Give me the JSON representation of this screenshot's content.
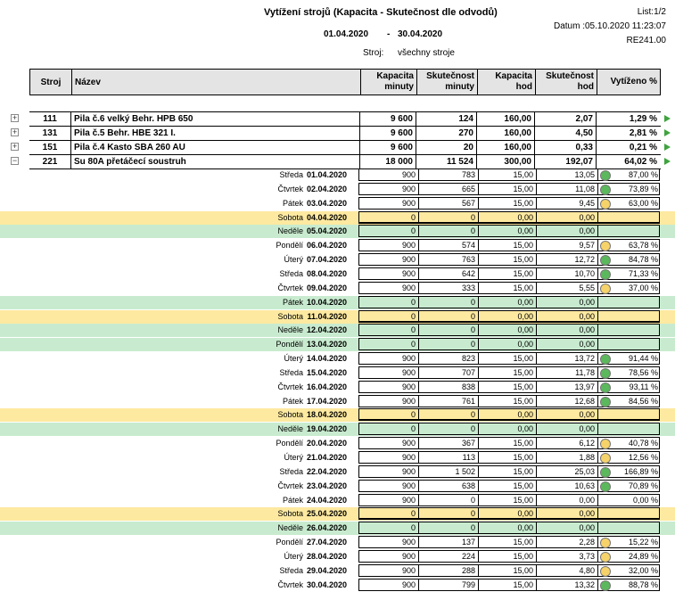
{
  "header": {
    "title": "Vytížení strojů (Kapacita -  Skutečnost dle odvodů)",
    "page": "List:1/2",
    "datum": "Datum :05.10.2020 11:23:07",
    "report_code": "RE241.00",
    "date_from": "01.04.2020",
    "dash": "-",
    "date_to": "30.04.2020",
    "stroj_label": "Stroj:",
    "stroj_value": "všechny stroje"
  },
  "columns": {
    "stroj": "Stroj",
    "nazev": "Název",
    "kap_min_1": "Kapacita",
    "kap_min_2": "minuty",
    "sku_min_1": "Skutečnost",
    "sku_min_2": "minuty",
    "kap_hod_1": "Kapacita",
    "kap_hod_2": "hod",
    "sku_hod_1": "Skutečnost",
    "sku_hod_2": "hod",
    "vyt": "Vytíženo %"
  },
  "machines": [
    {
      "expander": "+",
      "id": "111",
      "name": "Pila č.6 velký Behr. HPB 650",
      "kap_min": "9 600",
      "sku_min": "124",
      "kap_hod": "160,00",
      "sku_hod": "2,07",
      "pct": "1,29 %"
    },
    {
      "expander": "+",
      "id": "131",
      "name": "Pila č.5 Behr. HBE 321 I.",
      "kap_min": "9 600",
      "sku_min": "270",
      "kap_hod": "160,00",
      "sku_hod": "4,50",
      "pct": "2,81 %"
    },
    {
      "expander": "+",
      "id": "151",
      "name": "Pila č.4 Kasto SBA 260 AU",
      "kap_min": "9 600",
      "sku_min": "20",
      "kap_hod": "160,00",
      "sku_hod": "0,33",
      "pct": "0,21 %"
    },
    {
      "expander": "−",
      "id": "221",
      "name": "Su 80A přetáčecí soustruh",
      "kap_min": "18 000",
      "sku_min": "11 524",
      "kap_hod": "300,00",
      "sku_hod": "192,07",
      "pct": "64,02 %"
    }
  ],
  "indicator_colors": {
    "green": "#5cb85c",
    "yellow": "#f6d36a"
  },
  "days": [
    {
      "day": "Středa",
      "date": "01.04.2020",
      "kap_min": "900",
      "sku_min": "783",
      "kap_hod": "15,00",
      "sku_hod": "13,05",
      "indicator": "green",
      "pct": "87,00 %",
      "type": "work"
    },
    {
      "day": "Čtvrtek",
      "date": "02.04.2020",
      "kap_min": "900",
      "sku_min": "665",
      "kap_hod": "15,00",
      "sku_hod": "11,08",
      "indicator": "green",
      "pct": "73,89 %",
      "type": "work"
    },
    {
      "day": "Pátek",
      "date": "03.04.2020",
      "kap_min": "900",
      "sku_min": "567",
      "kap_hod": "15,00",
      "sku_hod": "9,45",
      "indicator": "yellow",
      "pct": "63,00 %",
      "type": "work"
    },
    {
      "day": "Sobota",
      "date": "04.04.2020",
      "kap_min": "0",
      "sku_min": "0",
      "kap_hod": "0,00",
      "sku_hod": "0,00",
      "indicator": "",
      "pct": "",
      "type": "sat"
    },
    {
      "day": "Neděle",
      "date": "05.04.2020",
      "kap_min": "0",
      "sku_min": "0",
      "kap_hod": "0,00",
      "sku_hod": "0,00",
      "indicator": "",
      "pct": "",
      "type": "sun"
    },
    {
      "day": "Pondělí",
      "date": "06.04.2020",
      "kap_min": "900",
      "sku_min": "574",
      "kap_hod": "15,00",
      "sku_hod": "9,57",
      "indicator": "yellow",
      "pct": "63,78 %",
      "type": "work"
    },
    {
      "day": "Úterý",
      "date": "07.04.2020",
      "kap_min": "900",
      "sku_min": "763",
      "kap_hod": "15,00",
      "sku_hod": "12,72",
      "indicator": "green",
      "pct": "84,78 %",
      "type": "work"
    },
    {
      "day": "Středa",
      "date": "08.04.2020",
      "kap_min": "900",
      "sku_min": "642",
      "kap_hod": "15,00",
      "sku_hod": "10,70",
      "indicator": "green",
      "pct": "71,33 %",
      "type": "work"
    },
    {
      "day": "Čtvrtek",
      "date": "09.04.2020",
      "kap_min": "900",
      "sku_min": "333",
      "kap_hod": "15,00",
      "sku_hod": "5,55",
      "indicator": "yellow",
      "pct": "37,00 %",
      "type": "work"
    },
    {
      "day": "Pátek",
      "date": "10.04.2020",
      "kap_min": "0",
      "sku_min": "0",
      "kap_hod": "0,00",
      "sku_hod": "0,00",
      "indicator": "",
      "pct": "",
      "type": "sun"
    },
    {
      "day": "Sobota",
      "date": "11.04.2020",
      "kap_min": "0",
      "sku_min": "0",
      "kap_hod": "0,00",
      "sku_hod": "0,00",
      "indicator": "",
      "pct": "",
      "type": "sat"
    },
    {
      "day": "Neděle",
      "date": "12.04.2020",
      "kap_min": "0",
      "sku_min": "0",
      "kap_hod": "0,00",
      "sku_hod": "0,00",
      "indicator": "",
      "pct": "",
      "type": "sun"
    },
    {
      "day": "Pondělí",
      "date": "13.04.2020",
      "kap_min": "0",
      "sku_min": "0",
      "kap_hod": "0,00",
      "sku_hod": "0,00",
      "indicator": "",
      "pct": "",
      "type": "sun"
    },
    {
      "day": "Úterý",
      "date": "14.04.2020",
      "kap_min": "900",
      "sku_min": "823",
      "kap_hod": "15,00",
      "sku_hod": "13,72",
      "indicator": "green",
      "pct": "91,44 %",
      "type": "work"
    },
    {
      "day": "Středa",
      "date": "15.04.2020",
      "kap_min": "900",
      "sku_min": "707",
      "kap_hod": "15,00",
      "sku_hod": "11,78",
      "indicator": "green",
      "pct": "78,56 %",
      "type": "work"
    },
    {
      "day": "Čtvrtek",
      "date": "16.04.2020",
      "kap_min": "900",
      "sku_min": "838",
      "kap_hod": "15,00",
      "sku_hod": "13,97",
      "indicator": "green",
      "pct": "93,11 %",
      "type": "work"
    },
    {
      "day": "Pátek",
      "date": "17.04.2020",
      "kap_min": "900",
      "sku_min": "761",
      "kap_hod": "15,00",
      "sku_hod": "12,68",
      "indicator": "green",
      "pct": "84,56 %",
      "type": "work"
    },
    {
      "day": "Sobota",
      "date": "18.04.2020",
      "kap_min": "0",
      "sku_min": "0",
      "kap_hod": "0,00",
      "sku_hod": "0,00",
      "indicator": "",
      "pct": "",
      "type": "sat"
    },
    {
      "day": "Neděle",
      "date": "19.04.2020",
      "kap_min": "0",
      "sku_min": "0",
      "kap_hod": "0,00",
      "sku_hod": "0,00",
      "indicator": "",
      "pct": "",
      "type": "sun"
    },
    {
      "day": "Pondělí",
      "date": "20.04.2020",
      "kap_min": "900",
      "sku_min": "367",
      "kap_hod": "15,00",
      "sku_hod": "6,12",
      "indicator": "yellow",
      "pct": "40,78 %",
      "type": "work"
    },
    {
      "day": "Úterý",
      "date": "21.04.2020",
      "kap_min": "900",
      "sku_min": "113",
      "kap_hod": "15,00",
      "sku_hod": "1,88",
      "indicator": "yellow",
      "pct": "12,56 %",
      "type": "work"
    },
    {
      "day": "Středa",
      "date": "22.04.2020",
      "kap_min": "900",
      "sku_min": "1 502",
      "kap_hod": "15,00",
      "sku_hod": "25,03",
      "indicator": "green",
      "pct": "166,89 %",
      "type": "work"
    },
    {
      "day": "Čtvrtek",
      "date": "23.04.2020",
      "kap_min": "900",
      "sku_min": "638",
      "kap_hod": "15,00",
      "sku_hod": "10,63",
      "indicator": "green",
      "pct": "70,89 %",
      "type": "work"
    },
    {
      "day": "Pátek",
      "date": "24.04.2020",
      "kap_min": "900",
      "sku_min": "0",
      "kap_hod": "15,00",
      "sku_hod": "0,00",
      "indicator": "",
      "pct": "0,00 %",
      "type": "work"
    },
    {
      "day": "Sobota",
      "date": "25.04.2020",
      "kap_min": "0",
      "sku_min": "0",
      "kap_hod": "0,00",
      "sku_hod": "0,00",
      "indicator": "",
      "pct": "",
      "type": "sat"
    },
    {
      "day": "Neděle",
      "date": "26.04.2020",
      "kap_min": "0",
      "sku_min": "0",
      "kap_hod": "0,00",
      "sku_hod": "0,00",
      "indicator": "",
      "pct": "",
      "type": "sun"
    },
    {
      "day": "Pondělí",
      "date": "27.04.2020",
      "kap_min": "900",
      "sku_min": "137",
      "kap_hod": "15,00",
      "sku_hod": "2,28",
      "indicator": "yellow",
      "pct": "15,22 %",
      "type": "work"
    },
    {
      "day": "Úterý",
      "date": "28.04.2020",
      "kap_min": "900",
      "sku_min": "224",
      "kap_hod": "15,00",
      "sku_hod": "3,73",
      "indicator": "yellow",
      "pct": "24,89 %",
      "type": "work"
    },
    {
      "day": "Středa",
      "date": "29.04.2020",
      "kap_min": "900",
      "sku_min": "288",
      "kap_hod": "15,00",
      "sku_hod": "4,80",
      "indicator": "yellow",
      "pct": "32,00 %",
      "type": "work"
    },
    {
      "day": "Čtvrtek",
      "date": "30.04.2020",
      "kap_min": "900",
      "sku_min": "799",
      "kap_hod": "15,00",
      "sku_hod": "13,32",
      "indicator": "green",
      "pct": "88,78 %",
      "type": "work"
    }
  ]
}
